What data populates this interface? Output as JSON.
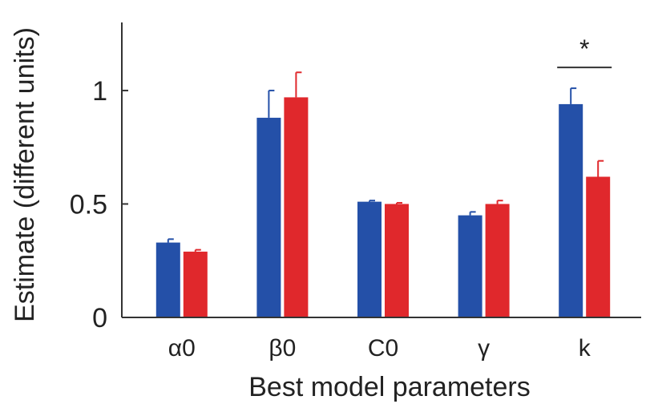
{
  "chart_data": {
    "type": "bar",
    "title": "",
    "xlabel": "Best model parameters",
    "ylabel": "Estimate (different units)",
    "ylim": [
      0,
      1.3
    ],
    "yticks": [
      0,
      0.5,
      1
    ],
    "ytick_labels": [
      "0",
      "0.5",
      "1"
    ],
    "categories": [
      "α0",
      "β0",
      "C0",
      "γ",
      "k"
    ],
    "series": [
      {
        "color": "#2450a8",
        "values": [
          0.33,
          0.88,
          0.51,
          0.45,
          0.94
        ],
        "errors": [
          0.015,
          0.12,
          0.005,
          0.015,
          0.07
        ]
      },
      {
        "color": "#e0282c",
        "values": [
          0.29,
          0.97,
          0.5,
          0.5,
          0.62
        ],
        "errors": [
          0.008,
          0.11,
          0.005,
          0.015,
          0.07
        ]
      }
    ],
    "grid": false,
    "annotations": [
      {
        "text": "*",
        "category": "k",
        "type": "significance"
      }
    ]
  }
}
